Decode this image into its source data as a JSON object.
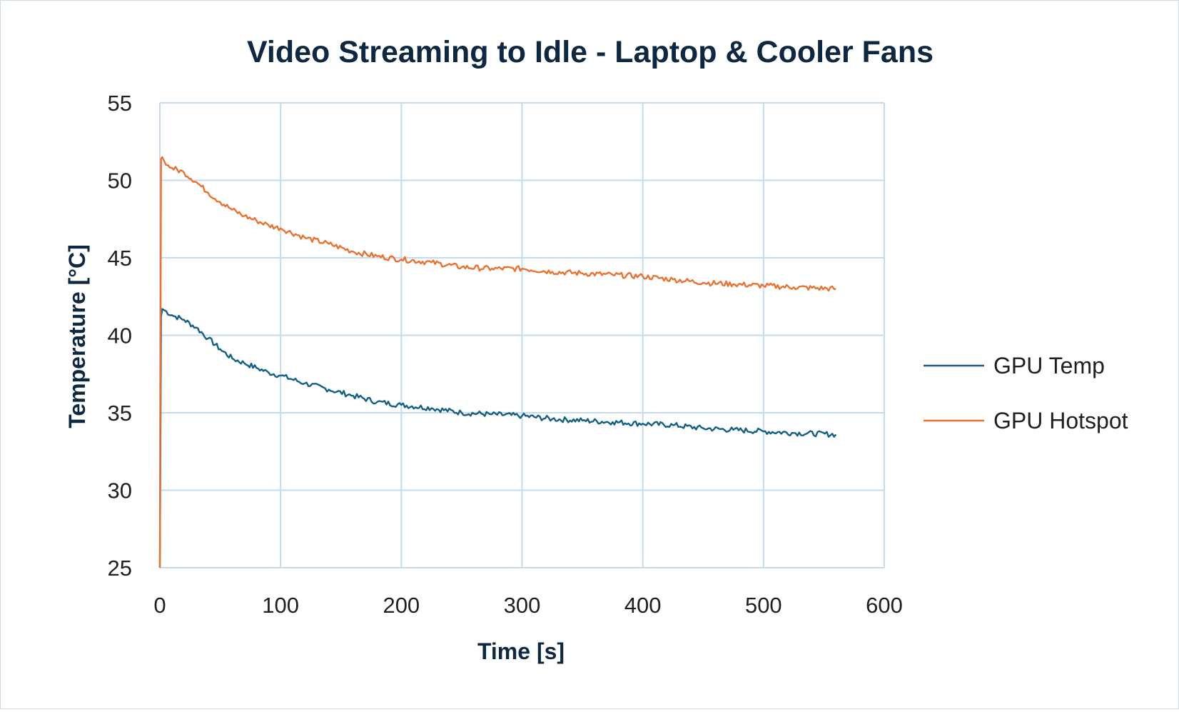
{
  "chart_data": {
    "type": "line",
    "title": "Video Streaming to Idle - Laptop & Cooler Fans",
    "xlabel": "Time [s]",
    "ylabel": "Temperature [°C]",
    "xlim": [
      0,
      600
    ],
    "ylim": [
      25,
      55
    ],
    "x_ticks": [
      "0",
      "100",
      "200",
      "300",
      "400",
      "500",
      "600"
    ],
    "y_ticks": [
      "25",
      "30",
      "35",
      "40",
      "45",
      "50",
      "55"
    ],
    "grid": true,
    "legend_position": "right",
    "series": [
      {
        "name": "GPU Temp",
        "color": "#156082",
        "x": [
          0,
          1,
          2,
          10,
          20,
          30,
          40,
          50,
          60,
          70,
          80,
          90,
          100,
          120,
          140,
          160,
          180,
          200,
          225,
          250,
          275,
          300,
          325,
          350,
          375,
          400,
          425,
          450,
          475,
          500,
          525,
          560
        ],
        "y": [
          25,
          41.2,
          41.7,
          41.3,
          41.0,
          40.5,
          39.8,
          39.1,
          38.5,
          38.2,
          37.9,
          37.6,
          37.4,
          36.9,
          36.5,
          36.1,
          35.7,
          35.5,
          35.3,
          35.0,
          34.9,
          34.8,
          34.6,
          34.5,
          34.4,
          34.3,
          34.2,
          34.0,
          33.9,
          33.8,
          33.7,
          33.6
        ]
      },
      {
        "name": "GPU Hotspot",
        "color": "#e97132",
        "x": [
          0,
          1,
          2,
          5,
          10,
          20,
          30,
          40,
          50,
          60,
          70,
          80,
          90,
          100,
          120,
          140,
          160,
          180,
          200,
          225,
          250,
          275,
          300,
          325,
          350,
          375,
          400,
          425,
          450,
          475,
          500,
          525,
          560
        ],
        "y": [
          25,
          51.4,
          51.5,
          51.0,
          50.8,
          50.5,
          49.9,
          49.2,
          48.6,
          48.1,
          47.7,
          47.4,
          47.1,
          46.9,
          46.3,
          45.9,
          45.4,
          45.1,
          44.9,
          44.7,
          44.4,
          44.3,
          44.3,
          44.1,
          44.0,
          43.9,
          43.8,
          43.6,
          43.4,
          43.3,
          43.2,
          43.1,
          43.0
        ]
      }
    ]
  }
}
